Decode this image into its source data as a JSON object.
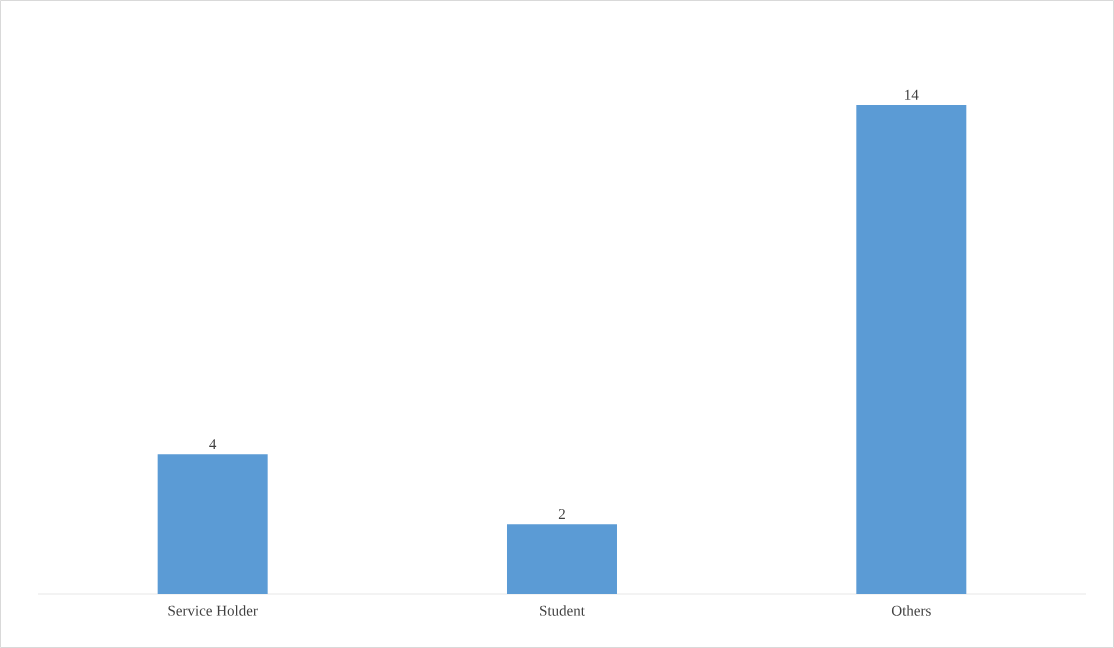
{
  "chart_data": {
    "type": "bar",
    "categories": [
      "Service Holder",
      "Student",
      "Others"
    ],
    "values": [
      4,
      2,
      14
    ],
    "color": "#5b9bd5",
    "data_labels": true
  }
}
